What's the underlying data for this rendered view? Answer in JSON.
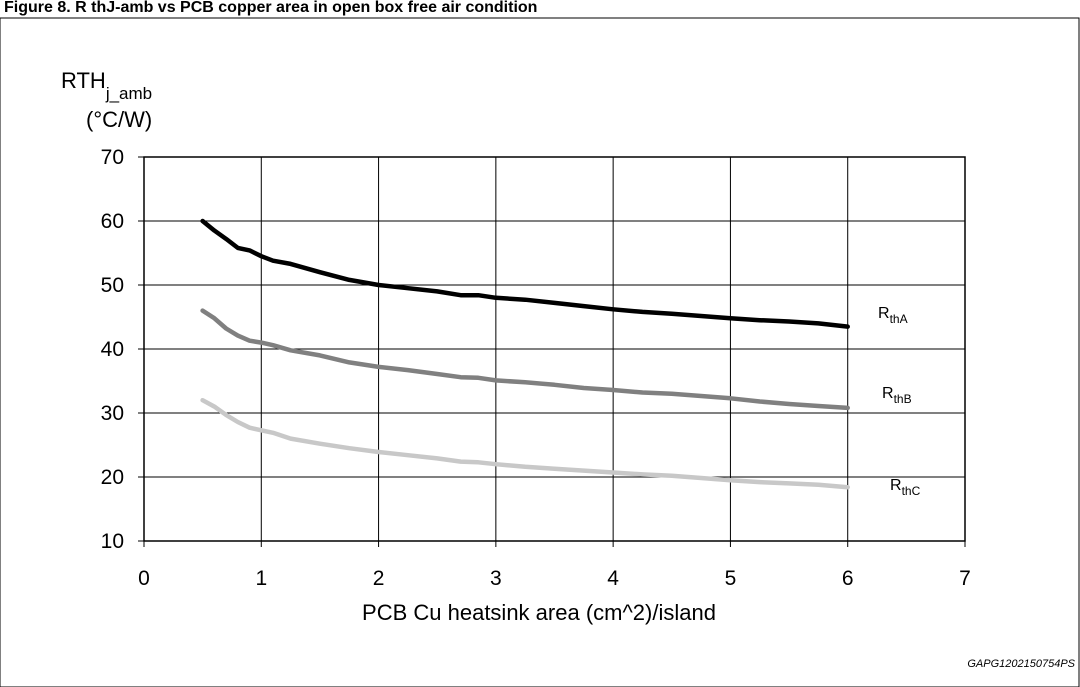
{
  "header": {
    "caption": "Figure 8. R thJ-amb vs PCB copper area in open box free air condition"
  },
  "chart_data": {
    "type": "line",
    "title": "",
    "xlabel": "PCB Cu heatsink area (cm^2)/island",
    "ylabel": {
      "main": "RTH",
      "sub": "j_amb",
      "unit": "(°C/W)"
    },
    "xlim": [
      0,
      7
    ],
    "ylim": [
      10,
      70
    ],
    "x_ticks": [
      0,
      1,
      2,
      3,
      4,
      5,
      6,
      7
    ],
    "y_ticks": [
      10,
      20,
      30,
      40,
      50,
      60,
      70
    ],
    "grid": true,
    "legend": "inline-right",
    "series": [
      {
        "name": "RthA",
        "label_main": "R",
        "label_sub": "thA",
        "color": "#000000",
        "x": [
          0.5,
          0.6,
          0.7,
          0.8,
          0.9,
          1.0,
          1.1,
          1.25,
          1.5,
          1.75,
          2.0,
          2.25,
          2.5,
          2.7,
          2.85,
          3.0,
          3.25,
          3.5,
          3.75,
          4.0,
          4.25,
          4.5,
          5.0,
          5.25,
          5.5,
          5.75,
          6.0
        ],
        "y": [
          60.0,
          58.5,
          57.2,
          55.8,
          55.4,
          54.5,
          53.8,
          53.3,
          52.0,
          50.8,
          50.0,
          49.5,
          49.0,
          48.4,
          48.4,
          48.0,
          47.7,
          47.2,
          46.7,
          46.2,
          45.8,
          45.5,
          44.8,
          44.5,
          44.3,
          44.0,
          43.5
        ]
      },
      {
        "name": "RthB",
        "label_main": "R",
        "label_sub": "thB",
        "color": "#808080",
        "x": [
          0.5,
          0.6,
          0.7,
          0.8,
          0.9,
          1.0,
          1.1,
          1.25,
          1.5,
          1.75,
          2.0,
          2.25,
          2.5,
          2.7,
          2.85,
          3.0,
          3.25,
          3.5,
          3.75,
          4.0,
          4.25,
          4.5,
          5.0,
          5.25,
          5.5,
          5.75,
          6.0
        ],
        "y": [
          46.0,
          44.8,
          43.2,
          42.1,
          41.3,
          41.0,
          40.6,
          39.8,
          39.0,
          37.9,
          37.2,
          36.7,
          36.1,
          35.6,
          35.5,
          35.1,
          34.8,
          34.4,
          33.9,
          33.6,
          33.2,
          33.0,
          32.3,
          31.8,
          31.4,
          31.1,
          30.8
        ]
      },
      {
        "name": "RthC",
        "label_main": "R",
        "label_sub": "thC",
        "color": "#c8c8c8",
        "x": [
          0.5,
          0.6,
          0.7,
          0.8,
          0.9,
          1.0,
          1.1,
          1.25,
          1.5,
          1.75,
          2.0,
          2.25,
          2.5,
          2.7,
          2.85,
          3.0,
          3.25,
          3.5,
          3.75,
          4.0,
          4.25,
          4.5,
          5.0,
          5.25,
          5.5,
          5.75,
          6.0
        ],
        "y": [
          32.0,
          31.0,
          29.7,
          28.6,
          27.7,
          27.3,
          26.9,
          26.0,
          25.2,
          24.5,
          23.9,
          23.4,
          22.9,
          22.4,
          22.3,
          22.0,
          21.6,
          21.3,
          21.0,
          20.7,
          20.4,
          20.2,
          19.5,
          19.2,
          19.0,
          18.8,
          18.4
        ]
      }
    ],
    "annotation": "GAPG1202150754PS"
  }
}
